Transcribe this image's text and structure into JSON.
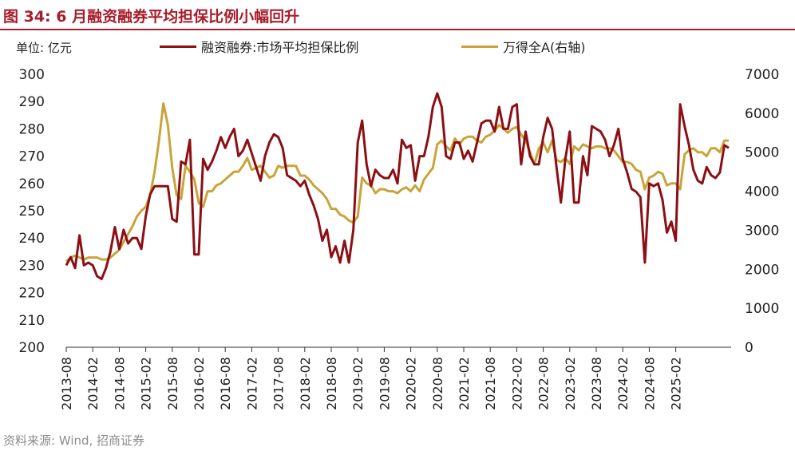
{
  "header": {
    "title": "图 34:  6 月融资融券平均担保比例小幅回升",
    "unit_label": "单位:  亿元",
    "source": "资料来源:  Wind,  招商证券"
  },
  "colors": {
    "title": "#a81d2b",
    "series_margin": "#8b0f14",
    "series_wind": "#c9a43a"
  },
  "chart_data": {
    "type": "line",
    "x_tick_labels": [
      "2013-08",
      "2014-02",
      "2014-08",
      "2015-02",
      "2015-08",
      "2016-02",
      "2016-08",
      "2017-02",
      "2017-08",
      "2018-02",
      "2018-08",
      "2019-02",
      "2019-08",
      "2020-02",
      "2020-08",
      "2021-02",
      "2021-08",
      "2022-02",
      "2022-08",
      "2023-02",
      "2023-08",
      "2024-02",
      "2024-08",
      "2025-02"
    ],
    "x_start": "2013-08",
    "y_left": {
      "min": 200,
      "max": 300,
      "step": 10,
      "ticks": [
        "200",
        "210",
        "220",
        "230",
        "240",
        "250",
        "260",
        "270",
        "280",
        "290",
        "300"
      ]
    },
    "y_right": {
      "min": 0,
      "max": 7000,
      "step": 1000,
      "ticks": [
        "0",
        "1000",
        "2000",
        "3000",
        "4000",
        "5000",
        "6000",
        "7000"
      ]
    },
    "series": [
      {
        "name": "融资融券:市场平均担保比例",
        "axis": "left",
        "values": [
          230,
          233,
          229,
          241,
          230,
          231,
          230,
          226,
          225,
          229,
          235,
          244,
          236,
          243,
          238,
          240,
          240,
          236,
          248,
          256,
          259,
          259,
          259,
          259,
          247,
          246,
          268,
          267,
          276,
          234,
          234,
          269,
          265,
          268,
          272,
          277,
          273,
          277,
          280,
          270,
          272,
          276,
          271,
          266,
          261,
          270,
          275,
          278,
          277,
          273,
          263,
          262,
          261,
          259,
          261,
          256,
          252,
          247,
          239,
          243,
          233,
          237,
          231,
          239,
          231,
          243,
          275,
          283,
          267,
          259,
          265,
          263,
          262,
          262,
          265,
          260,
          276,
          273,
          274,
          261,
          270,
          270,
          277,
          288,
          293,
          288,
          270,
          269,
          275,
          275,
          269,
          272,
          268,
          275,
          282,
          283,
          283,
          279,
          288,
          280,
          280,
          288,
          289,
          267,
          279,
          270,
          267,
          267,
          277,
          284,
          280,
          266,
          253,
          269,
          279,
          253,
          253,
          270,
          263,
          281,
          280,
          279,
          276,
          270,
          274,
          280,
          269,
          264,
          258,
          257,
          255,
          231,
          260,
          259,
          260,
          254,
          242,
          246,
          239,
          289,
          281,
          274,
          265,
          261,
          260,
          266,
          263,
          262,
          264,
          274,
          273
        ]
      },
      {
        "name": "万得全A(右轴)",
        "axis": "right",
        "values": [
          2200,
          2300,
          2350,
          2300,
          2250,
          2300,
          2300,
          2300,
          2250,
          2250,
          2300,
          2400,
          2500,
          2700,
          2900,
          3100,
          3350,
          3500,
          3600,
          3900,
          4500,
          5300,
          6250,
          5700,
          4600,
          3900,
          3800,
          4650,
          4500,
          4300,
          3700,
          3600,
          4000,
          4000,
          4150,
          4200,
          4300,
          4400,
          4500,
          4500,
          4650,
          4850,
          4550,
          4600,
          4650,
          4500,
          4350,
          4400,
          4650,
          4600,
          4650,
          4650,
          4650,
          4400,
          4400,
          4300,
          4150,
          4050,
          3950,
          3800,
          3550,
          3550,
          3400,
          3350,
          3250,
          3200,
          3350,
          4350,
          4200,
          4150,
          3950,
          4050,
          4050,
          4000,
          4000,
          3950,
          4050,
          4100,
          4000,
          4150,
          4000,
          4300,
          4450,
          4600,
          5200,
          5300,
          5150,
          5050,
          5350,
          5200,
          5350,
          5400,
          5400,
          5300,
          5250,
          5400,
          5450,
          5550,
          5700,
          5600,
          5500,
          5600,
          5650,
          5450,
          5300,
          5000,
          4700,
          5100,
          5250,
          5000,
          5300,
          4800,
          4750,
          4850,
          4700,
          5150,
          5050,
          5200,
          5150,
          5100,
          5150,
          5150,
          5100,
          5100,
          5050,
          4900,
          4750,
          4750,
          4700,
          4550,
          4500,
          4050,
          4350,
          4400,
          4500,
          4450,
          4150,
          4200,
          4200,
          4050,
          4950,
          5050,
          5100,
          5000,
          5000,
          4900,
          5100,
          5100,
          5000,
          5300,
          5300
        ]
      }
    ],
    "legend": "top"
  }
}
